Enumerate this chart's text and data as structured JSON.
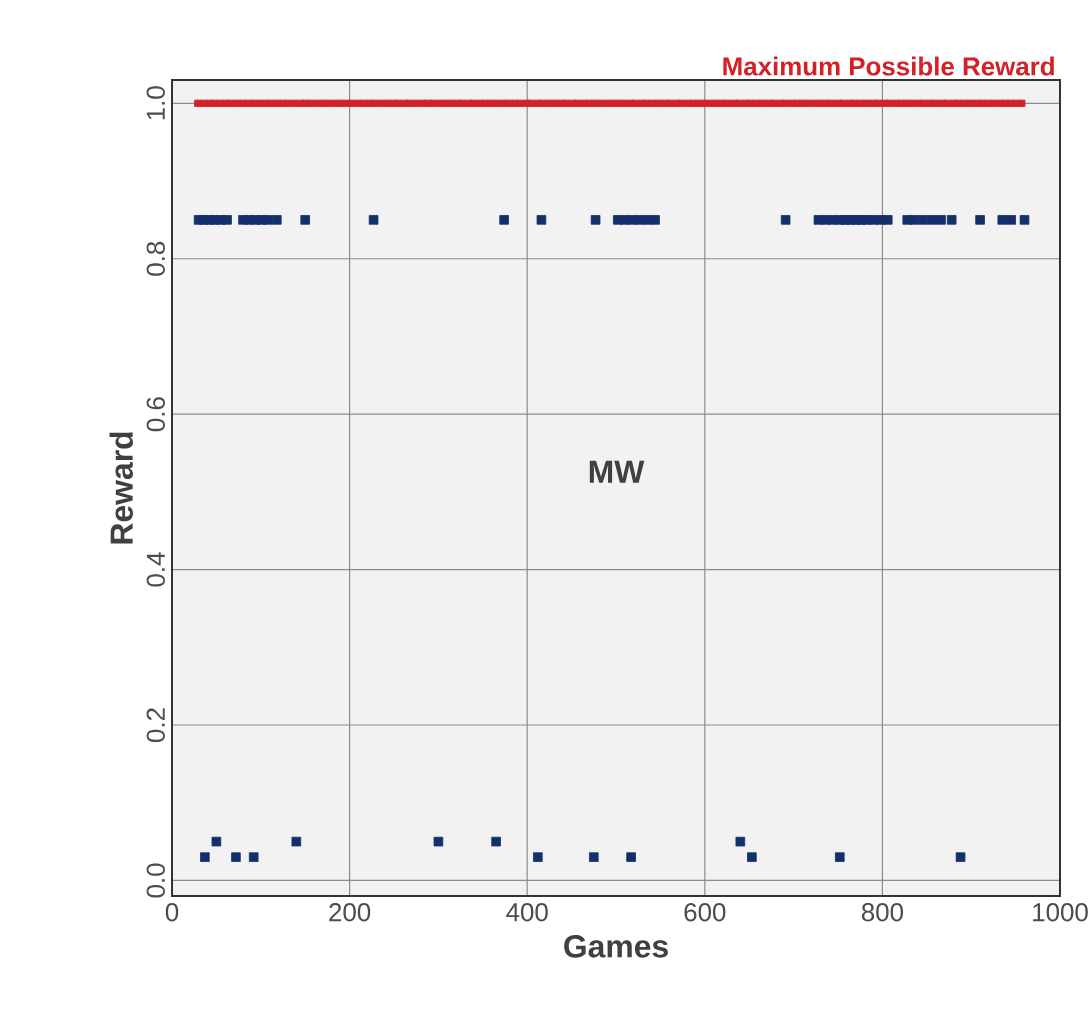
{
  "chart_data": {
    "type": "scatter",
    "xlabel": "Games",
    "ylabel": "Reward",
    "xlim": [
      0,
      1000
    ],
    "ylim": [
      -0.02,
      1.03
    ],
    "xticks": [
      0,
      200,
      400,
      600,
      800,
      1000
    ],
    "yticks": [
      {
        "value": 0,
        "label": "0.0"
      },
      {
        "value": 0.2,
        "label": "0.2"
      },
      {
        "value": 0.4,
        "label": "0.4"
      },
      {
        "value": 0.6,
        "label": "0.6"
      },
      {
        "value": 0.8,
        "label": "0.8"
      },
      {
        "value": 1,
        "label": "1.0"
      }
    ],
    "grid": true,
    "legend": false,
    "marker": "square",
    "annotations": [
      "MW"
    ],
    "series": [
      {
        "color": "#13306b",
        "x": [
          37,
          50,
          72,
          92,
          140,
          300,
          365,
          412,
          475,
          517,
          640,
          653,
          752,
          888,
          30,
          36,
          42,
          48,
          55,
          62,
          80,
          87,
          94,
          101,
          108,
          118,
          150,
          227,
          374,
          416,
          477,
          502,
          510,
          518,
          526,
          535,
          544,
          691,
          728,
          736,
          744,
          752,
          758,
          764,
          770,
          776,
          782,
          790,
          798,
          806,
          828,
          836,
          846,
          856,
          866,
          878,
          910,
          935,
          945,
          960
        ],
        "values": [
          0.03,
          0.05,
          0.03,
          0.03,
          0.05,
          0.05,
          0.05,
          0.03,
          0.03,
          0.03,
          0.05,
          0.03,
          0.03,
          0.03,
          0.85,
          0.85,
          0.85,
          0.85,
          0.85,
          0.85,
          0.85,
          0.85,
          0.85,
          0.85,
          0.85,
          0.85,
          0.85,
          0.85,
          0.85,
          0.85,
          0.85,
          0.85,
          0.85,
          0.85,
          0.85,
          0.85,
          0.85,
          0.85,
          0.85,
          0.85,
          0.85,
          0.85,
          0.85,
          0.85,
          0.85,
          0.85,
          0.85,
          0.85,
          0.85,
          0.85,
          0.85,
          0.85,
          0.85,
          0.85,
          0.85,
          0.85,
          0.85,
          0.85,
          0.85,
          0.85
        ]
      },
      {
        "name": "Maximum Possible Reward",
        "color": "#d42027",
        "x": [
          29,
          36,
          42,
          47,
          53,
          60,
          66,
          73,
          80,
          86,
          92,
          99,
          106,
          112,
          118,
          125,
          131,
          138,
          145,
          151,
          157,
          164,
          171,
          177,
          184,
          190,
          197,
          203,
          210,
          216,
          223,
          229,
          236,
          243,
          249,
          255,
          262,
          268,
          275,
          282,
          288,
          294,
          301,
          308,
          314,
          321,
          327,
          334,
          340,
          347,
          353,
          360,
          366,
          373,
          379,
          386,
          392,
          399,
          405,
          412,
          418,
          425,
          431,
          438,
          444,
          451,
          457,
          464,
          470,
          477,
          483,
          490,
          496,
          503,
          509,
          516,
          522,
          529,
          535,
          542,
          548,
          555,
          561,
          568,
          574,
          581,
          587,
          594,
          600,
          607,
          613,
          620,
          626,
          633,
          639,
          646,
          652,
          659,
          665,
          672,
          678,
          685,
          691,
          698,
          704,
          711,
          717,
          724,
          730,
          737,
          743,
          750,
          756,
          763,
          769,
          776,
          782,
          789,
          795,
          802,
          808,
          815,
          821,
          828,
          834,
          841,
          847,
          854,
          860,
          867,
          873,
          880,
          886,
          893,
          899,
          906,
          912,
          919,
          925,
          932,
          938,
          945,
          951,
          957
        ],
        "values": [
          1,
          1,
          1,
          1,
          1,
          1,
          1,
          1,
          1,
          1,
          1,
          1,
          1,
          1,
          1,
          1,
          1,
          1,
          1,
          1,
          1,
          1,
          1,
          1,
          1,
          1,
          1,
          1,
          1,
          1,
          1,
          1,
          1,
          1,
          1,
          1,
          1,
          1,
          1,
          1,
          1,
          1,
          1,
          1,
          1,
          1,
          1,
          1,
          1,
          1,
          1,
          1,
          1,
          1,
          1,
          1,
          1,
          1,
          1,
          1,
          1,
          1,
          1,
          1,
          1,
          1,
          1,
          1,
          1,
          1,
          1,
          1,
          1,
          1,
          1,
          1,
          1,
          1,
          1,
          1,
          1,
          1,
          1,
          1,
          1,
          1,
          1,
          1,
          1,
          1,
          1,
          1,
          1,
          1,
          1,
          1,
          1,
          1,
          1,
          1,
          1,
          1,
          1,
          1,
          1,
          1,
          1,
          1,
          1,
          1,
          1,
          1,
          1,
          1,
          1,
          1,
          1,
          1,
          1,
          1,
          1,
          1,
          1,
          1,
          1,
          1,
          1,
          1,
          1,
          1,
          1,
          1,
          1,
          1,
          1,
          1,
          1,
          1,
          1,
          1,
          1,
          1,
          1,
          1
        ]
      }
    ]
  }
}
